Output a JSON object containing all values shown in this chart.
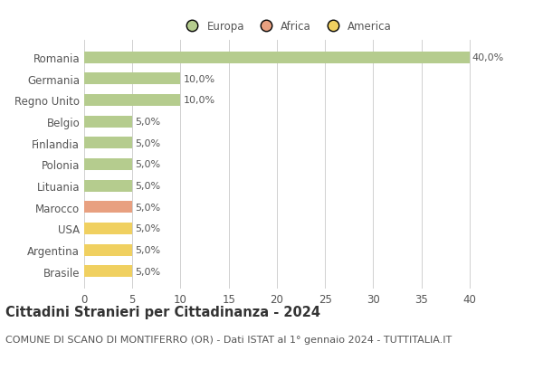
{
  "countries": [
    "Romania",
    "Germania",
    "Regno Unito",
    "Belgio",
    "Finlandia",
    "Polonia",
    "Lituania",
    "Marocco",
    "USA",
    "Argentina",
    "Brasile"
  ],
  "values": [
    40.0,
    10.0,
    10.0,
    5.0,
    5.0,
    5.0,
    5.0,
    5.0,
    5.0,
    5.0,
    5.0
  ],
  "colors": [
    "#b5cc8e",
    "#b5cc8e",
    "#b5cc8e",
    "#b5cc8e",
    "#b5cc8e",
    "#b5cc8e",
    "#b5cc8e",
    "#e8a080",
    "#f0d060",
    "#f0d060",
    "#f0d060"
  ],
  "legend": [
    {
      "label": "Europa",
      "color": "#b5cc8e"
    },
    {
      "label": "Africa",
      "color": "#e8a080"
    },
    {
      "label": "America",
      "color": "#f0d060"
    }
  ],
  "title": "Cittadini Stranieri per Cittadinanza - 2024",
  "subtitle": "COMUNE DI SCANO DI MONTIFERRO (OR) - Dati ISTAT al 1° gennaio 2024 - TUTTITALIA.IT",
  "xlim": [
    0,
    42
  ],
  "xticks": [
    0,
    5,
    10,
    15,
    20,
    25,
    30,
    35,
    40
  ],
  "bar_height": 0.55,
  "background_color": "#ffffff",
  "grid_color": "#d0d0d0",
  "label_fontsize": 8,
  "title_fontsize": 10.5,
  "subtitle_fontsize": 8,
  "tick_fontsize": 8.5
}
